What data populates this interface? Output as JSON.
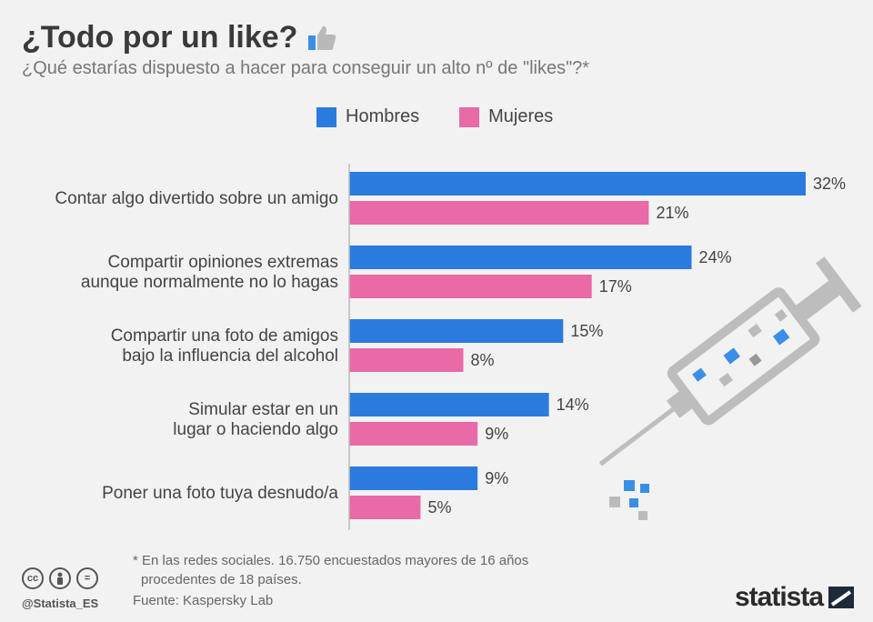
{
  "header": {
    "title": "¿Todo por un like?",
    "subtitle": "¿Qué estarías dispuesto a hacer para conseguir un alto nº de \"likes\"?*"
  },
  "legend": {
    "items": [
      {
        "label": "Hombres",
        "color": "#2b7bde"
      },
      {
        "label": "Mujeres",
        "color": "#e86aa6"
      }
    ]
  },
  "chart_data": {
    "type": "bar",
    "orientation": "horizontal",
    "categories": [
      [
        "Contar algo divertido sobre un amigo"
      ],
      [
        "Compartir opiniones extremas",
        "aunque normalmente no lo hagas"
      ],
      [
        "Compartir una foto de amigos",
        "bajo la influencia del alcohol"
      ],
      [
        "Simular estar en un",
        "lugar o haciendo algo"
      ],
      [
        "Poner una foto tuya desnudo/a"
      ]
    ],
    "series": [
      {
        "name": "Hombres",
        "color": "#2b7bde",
        "values": [
          32,
          24,
          15,
          14,
          9
        ]
      },
      {
        "name": "Mujeres",
        "color": "#e86aa6",
        "values": [
          21,
          17,
          8,
          9,
          5
        ]
      }
    ],
    "value_suffix": "%",
    "xlim": [
      0,
      32
    ],
    "grid": false,
    "legend_position": "top"
  },
  "footer": {
    "note_line1": "* En las redes sociales. 16.750 encuestados mayores de 16 años",
    "note_line2": "procedentes de 18 países.",
    "source": "Fuente: Kaspersky Lab",
    "handle": "@Statista_ES",
    "brand": "statista",
    "cc_icons": [
      "cc",
      "by",
      "="
    ]
  },
  "icons": {
    "title_icon": "thumbs-up-icon",
    "decoration": "syringe-with-likes-illustration"
  }
}
